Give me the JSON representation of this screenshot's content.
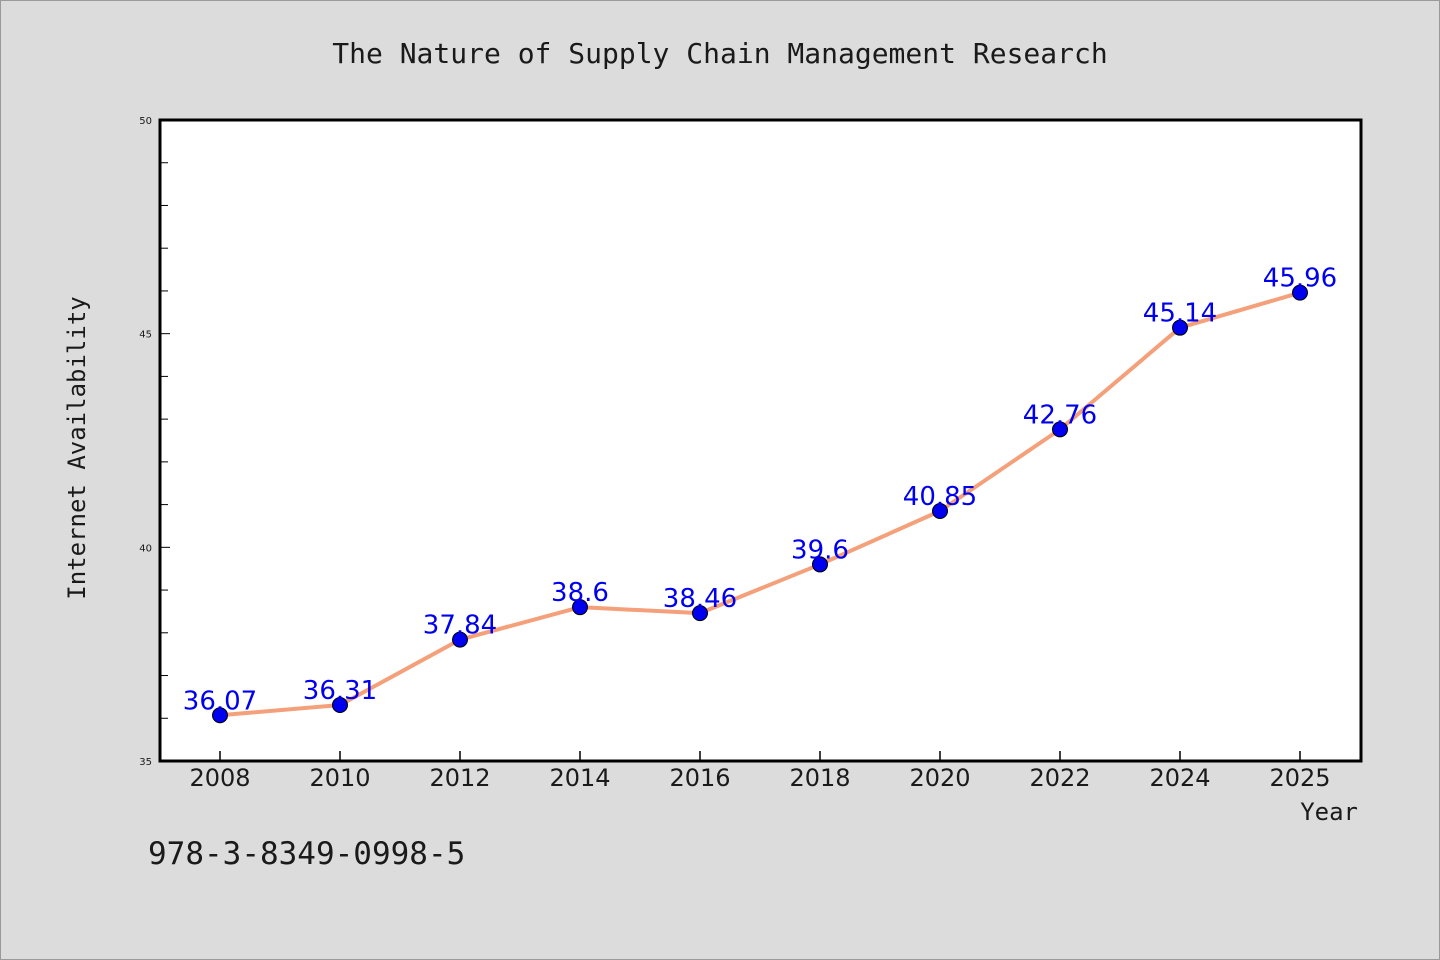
{
  "chart_data": {
    "type": "line",
    "title": "The Nature of Supply Chain Management Research",
    "xlabel": "Year",
    "ylabel": "Internet Availability",
    "x": [
      "2008",
      "2010",
      "2012",
      "2014",
      "2016",
      "2018",
      "2020",
      "2022",
      "2024",
      "2025"
    ],
    "series": [
      {
        "values": [
          36.07,
          36.31,
          37.84,
          38.6,
          38.46,
          39.6,
          40.85,
          42.76,
          45.14,
          45.96
        ],
        "line_color": "#f4a07a",
        "marker_color": "#0000ee",
        "label_color": "#0000ee"
      }
    ],
    "data_labels": [
      "36.07",
      "36.31",
      "37.84",
      "38.6",
      "38.46",
      "39.6",
      "40.85",
      "42.76",
      "45.14",
      "45.96"
    ],
    "ylim": [
      35,
      50
    ],
    "y_ticks": [
      "35",
      "40",
      "45",
      "50"
    ],
    "grid": false,
    "legend": "none"
  },
  "footnote": "978-3-8349-0998-5",
  "colors": {
    "background": "#dcdcdc",
    "plot_background": "#ffffff",
    "axis": "#000000"
  }
}
